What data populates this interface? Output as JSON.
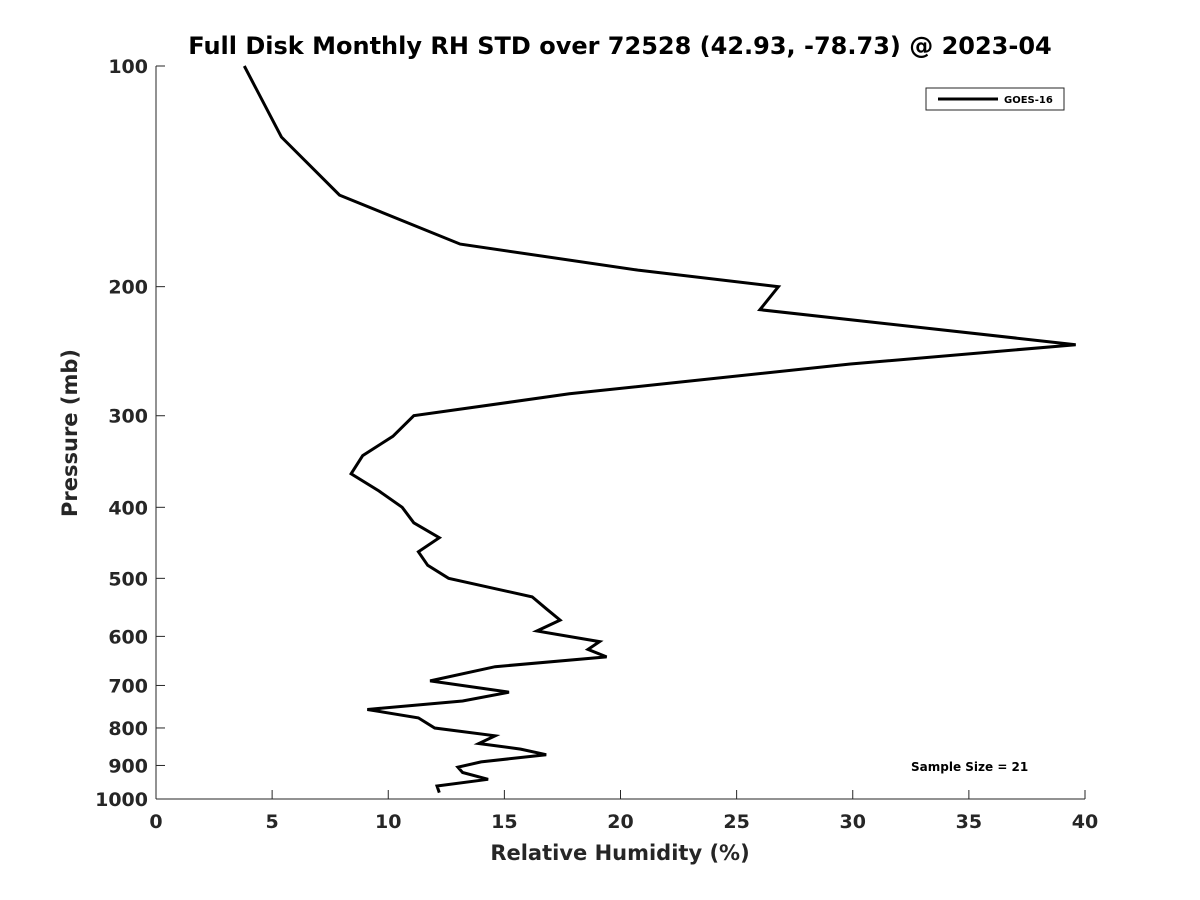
{
  "chart_data": {
    "type": "line",
    "title": "Full Disk Monthly RH STD over 72528 (42.93, -78.73) @ 2023-04",
    "xlabel": "Relative Humidity (%)",
    "ylabel": "Pressure (mb)",
    "xlim": [
      0,
      40
    ],
    "ylim": [
      100,
      1000
    ],
    "y_scale": "log",
    "y_reversed": true,
    "x_ticks": [
      0,
      5,
      10,
      15,
      20,
      25,
      30,
      35,
      40
    ],
    "y_ticks": [
      100,
      200,
      300,
      400,
      500,
      600,
      700,
      800,
      900,
      1000
    ],
    "grid": false,
    "legend_position": "top-right",
    "series": [
      {
        "name": "GOES-16",
        "color": "#000000",
        "points": [
          [
            3.8,
            100
          ],
          [
            5.4,
            125
          ],
          [
            7.9,
            150
          ],
          [
            13.1,
            175
          ],
          [
            20.8,
            190
          ],
          [
            26.8,
            200
          ],
          [
            26.0,
            215
          ],
          [
            39.6,
            240
          ],
          [
            29.9,
            255
          ],
          [
            17.8,
            280
          ],
          [
            11.1,
            300
          ],
          [
            10.2,
            320
          ],
          [
            8.9,
            340
          ],
          [
            8.4,
            360
          ],
          [
            9.6,
            380
          ],
          [
            10.6,
            400
          ],
          [
            11.1,
            420
          ],
          [
            12.2,
            440
          ],
          [
            11.3,
            460
          ],
          [
            11.7,
            480
          ],
          [
            12.6,
            500
          ],
          [
            16.2,
            530
          ],
          [
            16.8,
            550
          ],
          [
            17.4,
            570
          ],
          [
            16.4,
            590
          ],
          [
            19.1,
            610
          ],
          [
            18.6,
            625
          ],
          [
            19.4,
            640
          ],
          [
            14.6,
            660
          ],
          [
            11.8,
            690
          ],
          [
            15.2,
            715
          ],
          [
            13.2,
            735
          ],
          [
            9.1,
            755
          ],
          [
            11.3,
            775
          ],
          [
            12.0,
            800
          ],
          [
            14.6,
            820
          ],
          [
            13.9,
            840
          ],
          [
            15.7,
            855
          ],
          [
            16.8,
            870
          ],
          [
            14.0,
            890
          ],
          [
            13.0,
            905
          ],
          [
            13.2,
            920
          ],
          [
            14.3,
            940
          ],
          [
            12.1,
            960
          ],
          [
            12.2,
            980
          ]
        ]
      }
    ],
    "annotations": [
      "Sample Size = 21"
    ]
  }
}
